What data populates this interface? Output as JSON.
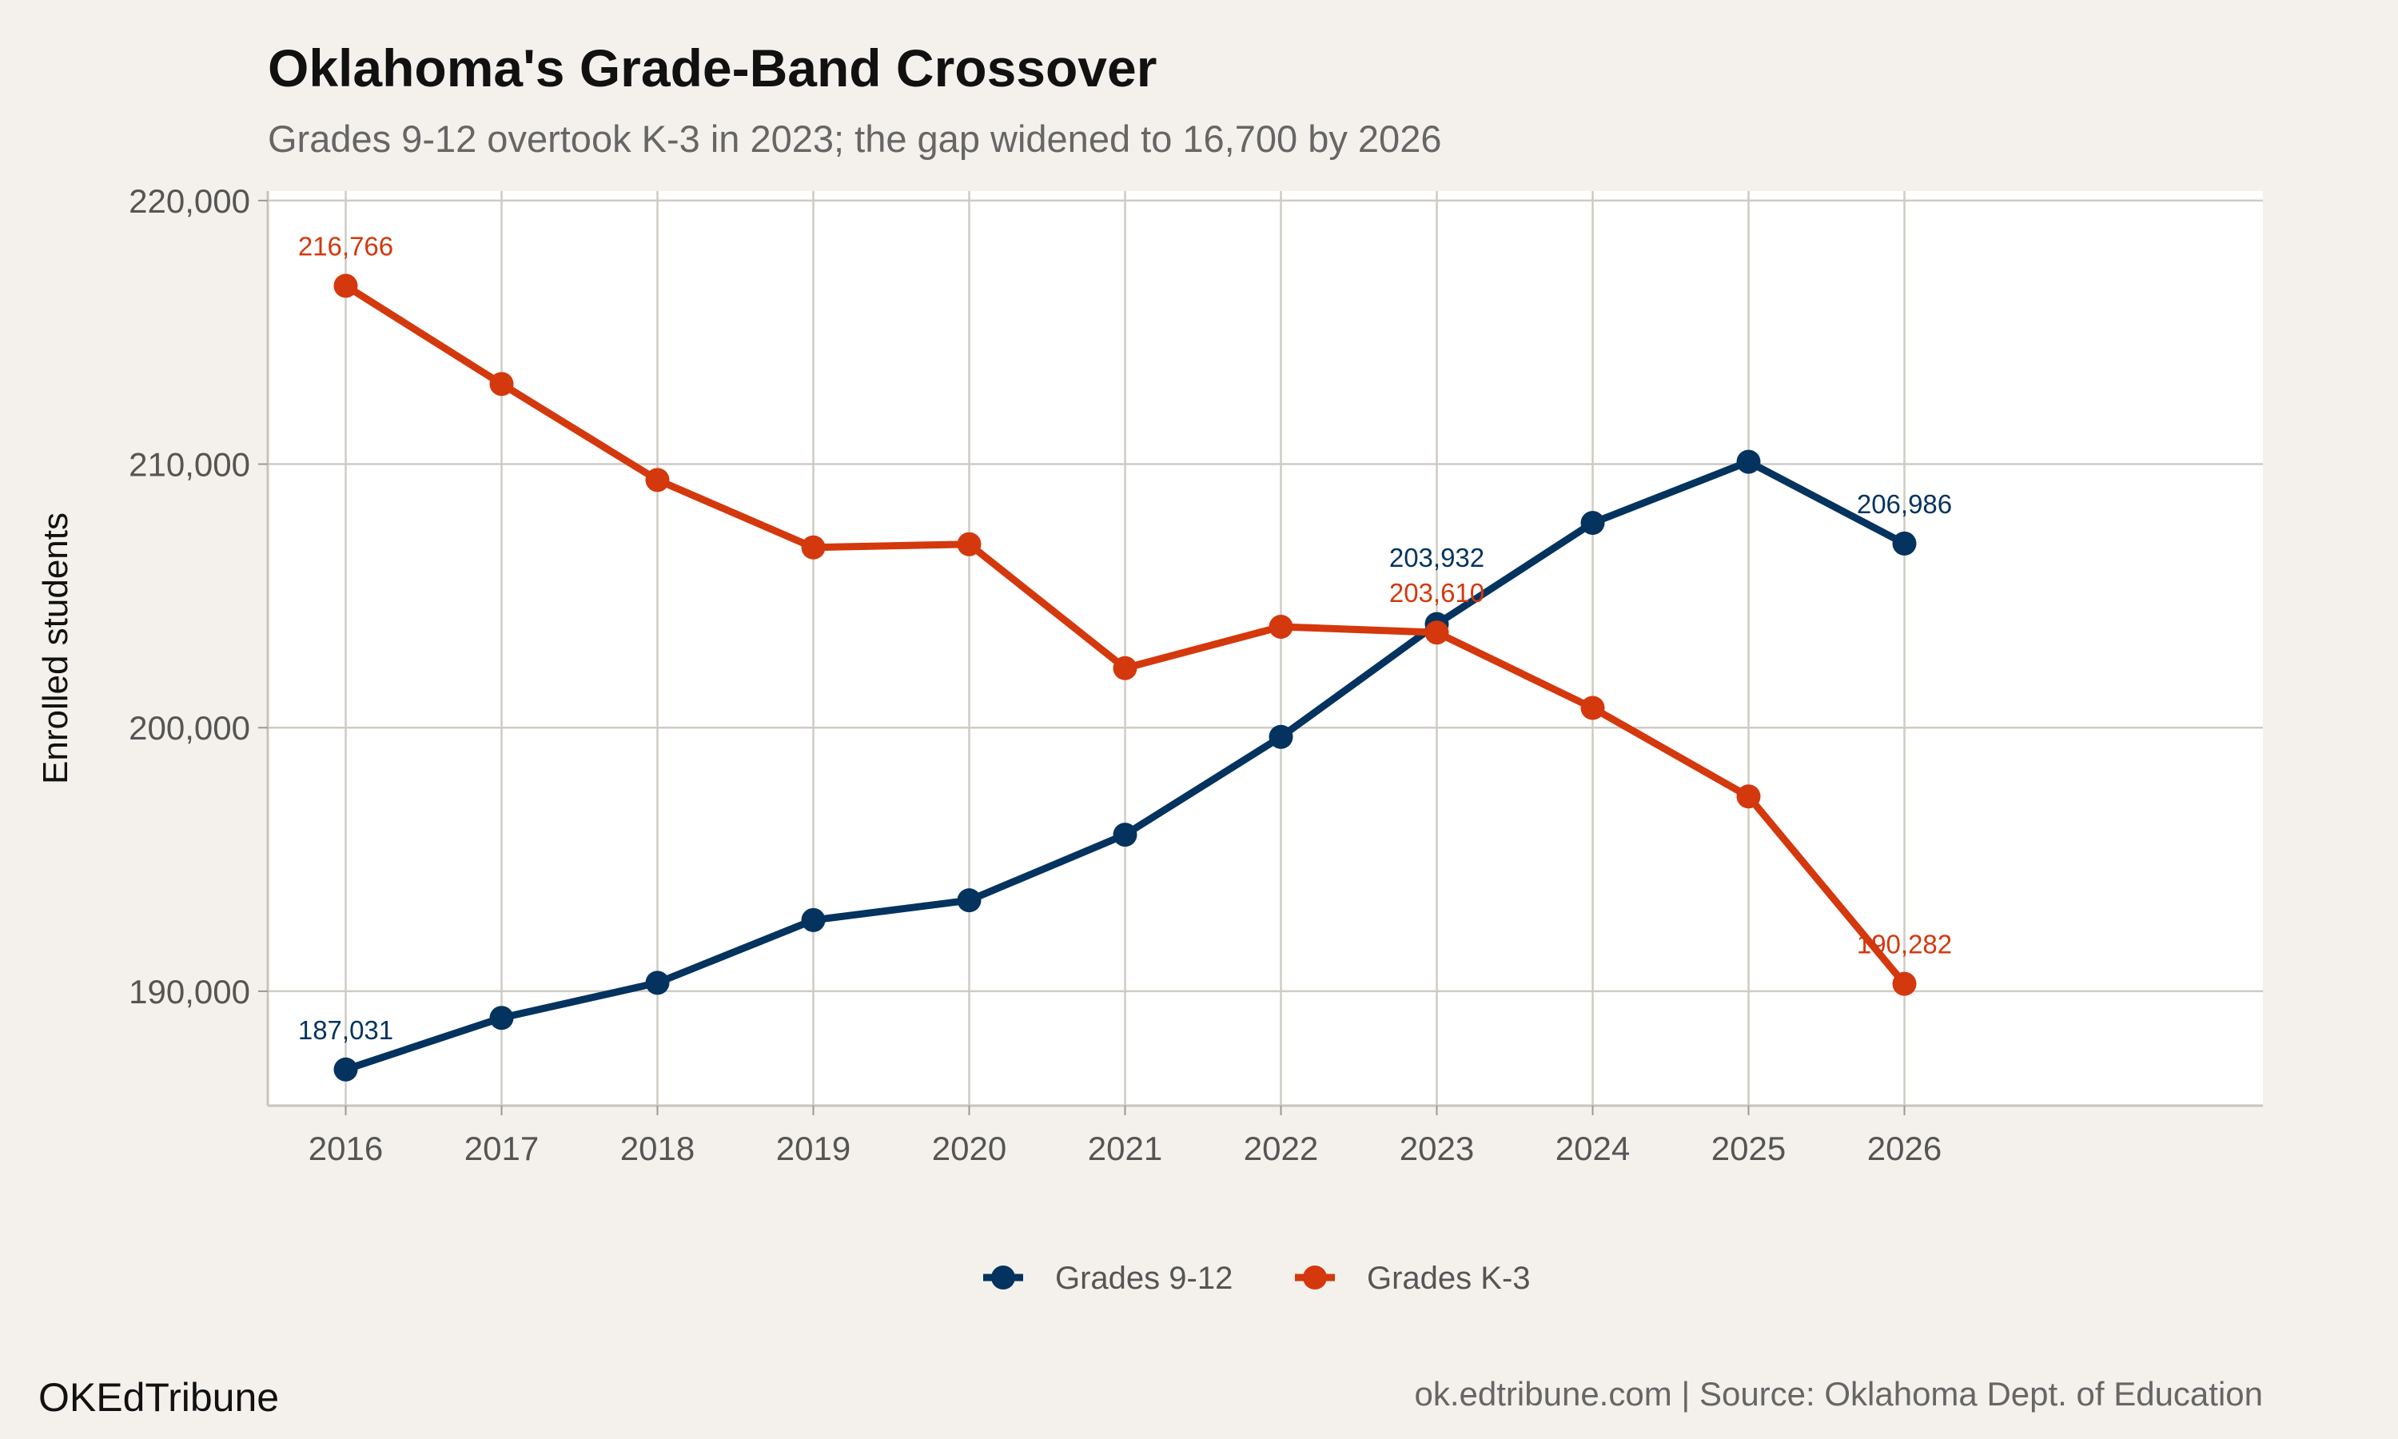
{
  "chart_data": {
    "type": "line",
    "title": "Oklahoma's Grade-Band Crossover",
    "subtitle": "Grades 9-12 overtook K-3 in 2023; the gap widened to 16,700 by 2026",
    "xlabel": "",
    "ylabel": "Enrolled students",
    "x": [
      2016,
      2017,
      2018,
      2019,
      2020,
      2021,
      2022,
      2023,
      2024,
      2025,
      2026
    ],
    "x_tick_labels": [
      "2016",
      "2017",
      "2018",
      "2019",
      "2020",
      "2021",
      "2022",
      "2023",
      "2024",
      "2025",
      "2026"
    ],
    "y_ticks": [
      190000,
      200000,
      210000,
      220000
    ],
    "y_tick_labels": [
      "190,000",
      "200,000",
      "210,000",
      "220,000"
    ],
    "ylim": [
      185660,
      220360
    ],
    "xlim": [
      2015.5,
      2028.3
    ],
    "grid": true,
    "legend_position": "bottom",
    "series": [
      {
        "name": "Grades 9-12",
        "color": "#04335f",
        "values": [
          187031,
          188990,
          190320,
          192700,
          193450,
          195940,
          199650,
          203932,
          207770,
          210090,
          206986
        ],
        "labels": {
          "2016": "187,031",
          "2023": "203,932",
          "2026": "206,986"
        }
      },
      {
        "name": "Grades K-3",
        "color": "#d4380d",
        "values": [
          216766,
          213040,
          209400,
          206840,
          206960,
          202260,
          203830,
          203610,
          200750,
          197390,
          190282
        ],
        "labels": {
          "2016": "216,766",
          "2023": "203,610",
          "2026": "190,282"
        }
      }
    ]
  },
  "footer": {
    "brand": "OKEdTribune",
    "source": "ok.edtribune.com | Source: Oklahoma Dept. of Education"
  }
}
